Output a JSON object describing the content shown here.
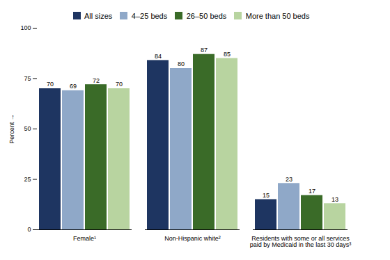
{
  "chart_data": {
    "type": "bar",
    "categories": [
      "Female¹",
      "Non-Hispanic white²",
      "Residents with some or all services\npaid by Medicaid in the last 30 days³"
    ],
    "series": [
      {
        "name": "All sizes",
        "color": "#1e3561",
        "values": [
          70,
          84,
          15
        ]
      },
      {
        "name": "4–25 beds",
        "color": "#8fa8c8",
        "values": [
          69,
          80,
          23
        ]
      },
      {
        "name": "26–50 beds",
        "color": "#3a6b28",
        "values": [
          72,
          87,
          17
        ]
      },
      {
        "name": "More than 50 beds",
        "color": "#b8d4a0",
        "values": [
          70,
          85,
          13
        ]
      }
    ],
    "ylabel": "Percent",
    "ylim": [
      0,
      100
    ],
    "yticks": [
      0,
      25,
      50,
      75,
      100
    ],
    "grid": false,
    "legend": "top",
    "data_labels": true
  }
}
